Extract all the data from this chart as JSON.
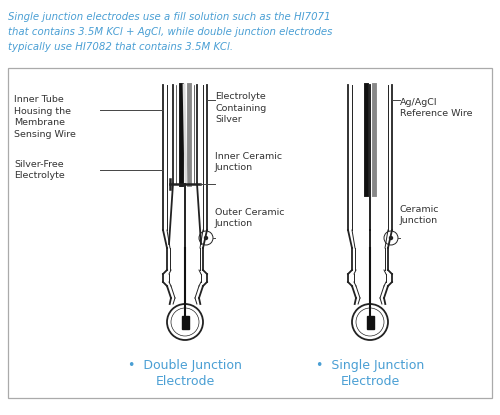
{
  "title_color": "#4a9fd4",
  "label_color": "#333333",
  "blue_color": "#4a9fd4",
  "line_color": "#222222",
  "bg_color": "#ffffff",
  "title_line1": "Single junction electrodes use a fill solution such as the HI7071",
  "title_line2": "that contains 3.5M KCl + AgCl, while double junction electrodes",
  "title_line3": "typically use HI7082 that contains 3.5M KCl.",
  "dj_label_bottom": "Double Junction",
  "dj_label_bottom2": "Electrode",
  "sj_label_bottom": "Single Junction",
  "sj_label_bottom2": "Electrode",
  "lw_outer": 1.3,
  "lw_inner": 0.7
}
